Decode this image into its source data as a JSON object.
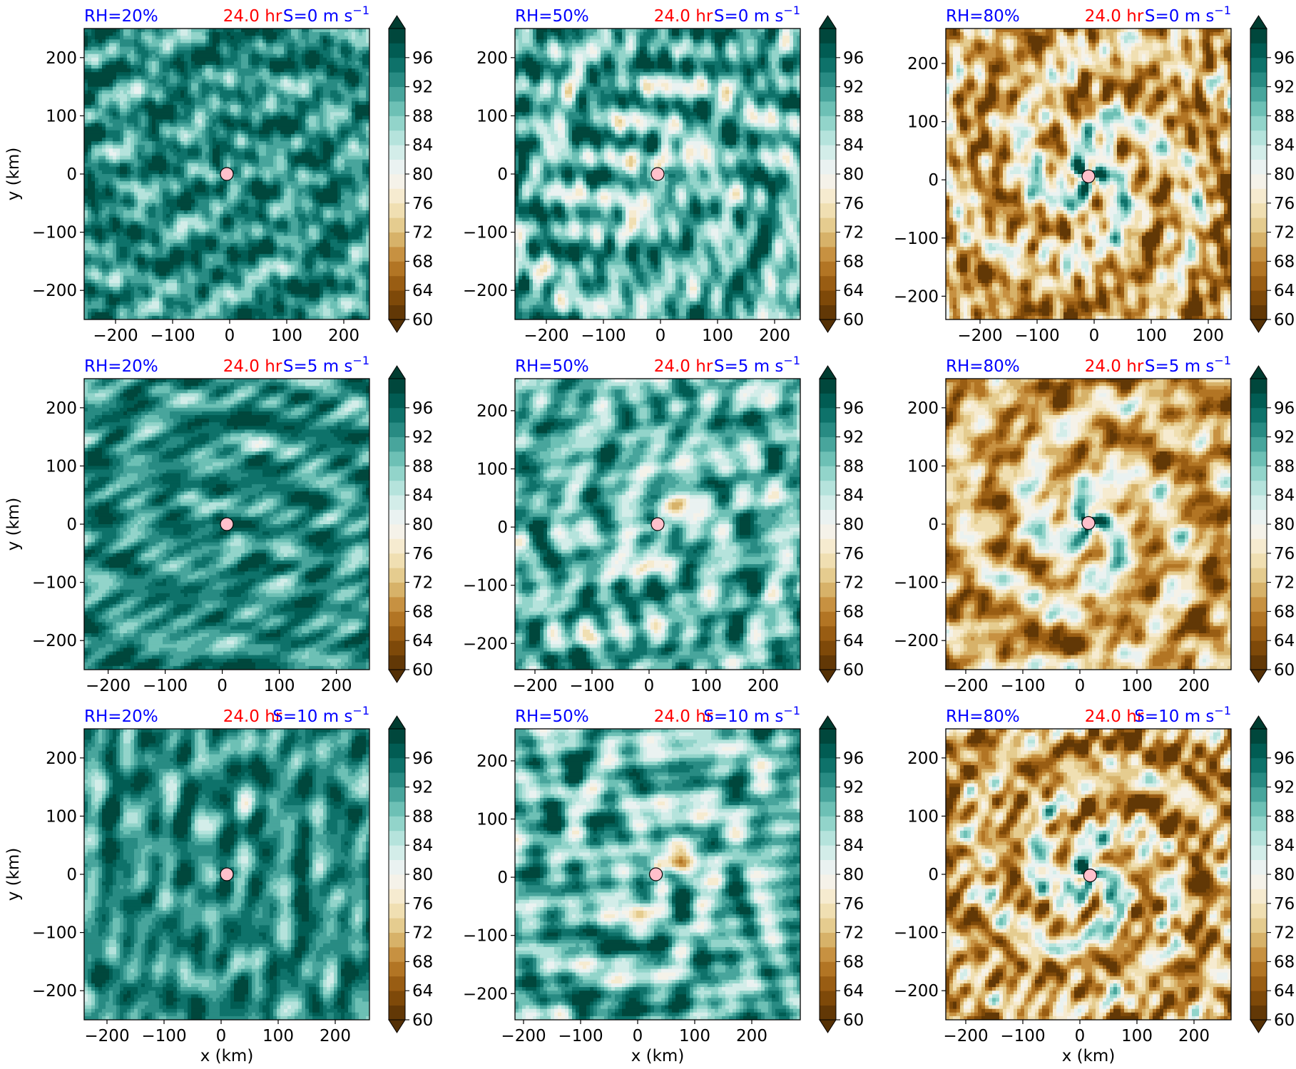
{
  "chart_data": {
    "type": "heatmap",
    "layout": "3x3 grid of filled-contour maps with colorbars",
    "colormap": "BrBG",
    "colormap_stops": [
      "#543005",
      "#8c510a",
      "#bf812d",
      "#dfc27d",
      "#f6e8c3",
      "#f5f5f5",
      "#c7eae5",
      "#80cdc1",
      "#35978f",
      "#01665e",
      "#003c30"
    ],
    "center_marker_color": "#ffc0cb",
    "colorbar": {
      "levels_min": 60,
      "levels_max": 100,
      "level_step": 2,
      "ticks": [
        "60",
        "64",
        "68",
        "72",
        "76",
        "80",
        "84",
        "88",
        "92",
        "96"
      ],
      "extend": "both"
    },
    "xlabel": "x (km)",
    "ylabel": "y (km)",
    "y_ticks": [
      "−200",
      "−100",
      "0",
      "100",
      "200"
    ],
    "y_tick_values": [
      -200,
      -100,
      0,
      100,
      200
    ],
    "x_ticks": [
      "−200",
      "−100",
      "0",
      "100",
      "200"
    ],
    "x_tick_values": [
      -200,
      -100,
      0,
      100,
      200
    ],
    "panels": [
      {
        "rh": "RH=20%",
        "time": "24.0 hr",
        "shear": "S=0 m s",
        "shear_exp": "−1",
        "xlim": [
          -255,
          245
        ],
        "ylim": [
          -250,
          250
        ],
        "center": [
          -5,
          0
        ],
        "rh_value": 20,
        "shear_value": 0
      },
      {
        "rh": "RH=50%",
        "time": "24.0 hr",
        "shear": "S=0 m s",
        "shear_exp": "−1",
        "xlim": [
          -255,
          245
        ],
        "ylim": [
          -250,
          250
        ],
        "center": [
          -5,
          0
        ],
        "rh_value": 50,
        "shear_value": 0
      },
      {
        "rh": "RH=80%",
        "time": "24.0 hr",
        "shear": "S=0 m s",
        "shear_exp": "−1",
        "xlim": [
          -260,
          240
        ],
        "ylim": [
          -240,
          260
        ],
        "center": [
          -10,
          6
        ],
        "rh_value": 80,
        "shear_value": 0
      },
      {
        "rh": "RH=20%",
        "time": "24.0 hr",
        "shear": "S=5 m s",
        "shear_exp": "−1",
        "xlim": [
          -242,
          258
        ],
        "ylim": [
          -250,
          250
        ],
        "center": [
          8,
          0
        ],
        "rh_value": 20,
        "shear_value": 5
      },
      {
        "rh": "RH=50%",
        "time": "24.0 hr",
        "shear": "S=5 m s",
        "shear_exp": "−1",
        "xlim": [
          -235,
          265
        ],
        "ylim": [
          -245,
          255
        ],
        "center": [
          15,
          5
        ],
        "rh_value": 50,
        "shear_value": 5
      },
      {
        "rh": "RH=80%",
        "time": "24.0 hr",
        "shear": "S=5 m s",
        "shear_exp": "−1",
        "xlim": [
          -235,
          265
        ],
        "ylim": [
          -250,
          250
        ],
        "center": [
          15,
          2
        ],
        "rh_value": 80,
        "shear_value": 5
      },
      {
        "rh": "RH=20%",
        "time": "24.0 hr",
        "shear": "S=10 m s",
        "shear_exp": "−1",
        "xlim": [
          -240,
          260
        ],
        "ylim": [
          -250,
          250
        ],
        "center": [
          10,
          0
        ],
        "rh_value": 20,
        "shear_value": 10
      },
      {
        "rh": "RH=50%",
        "time": "24.0 hr",
        "shear": "S=10 m s",
        "shear_exp": "−1",
        "xlim": [
          -215,
          285
        ],
        "ylim": [
          -245,
          255
        ],
        "center": [
          32,
          5
        ],
        "rh_value": 50,
        "shear_value": 10
      },
      {
        "rh": "RH=80%",
        "time": "24.0 hr",
        "shear": "S=10 m s",
        "shear_exp": "−1",
        "xlim": [
          -235,
          265
        ],
        "ylim": [
          -250,
          250
        ],
        "center": [
          18,
          -2
        ],
        "rh_value": 80,
        "shear_value": 10
      }
    ]
  }
}
